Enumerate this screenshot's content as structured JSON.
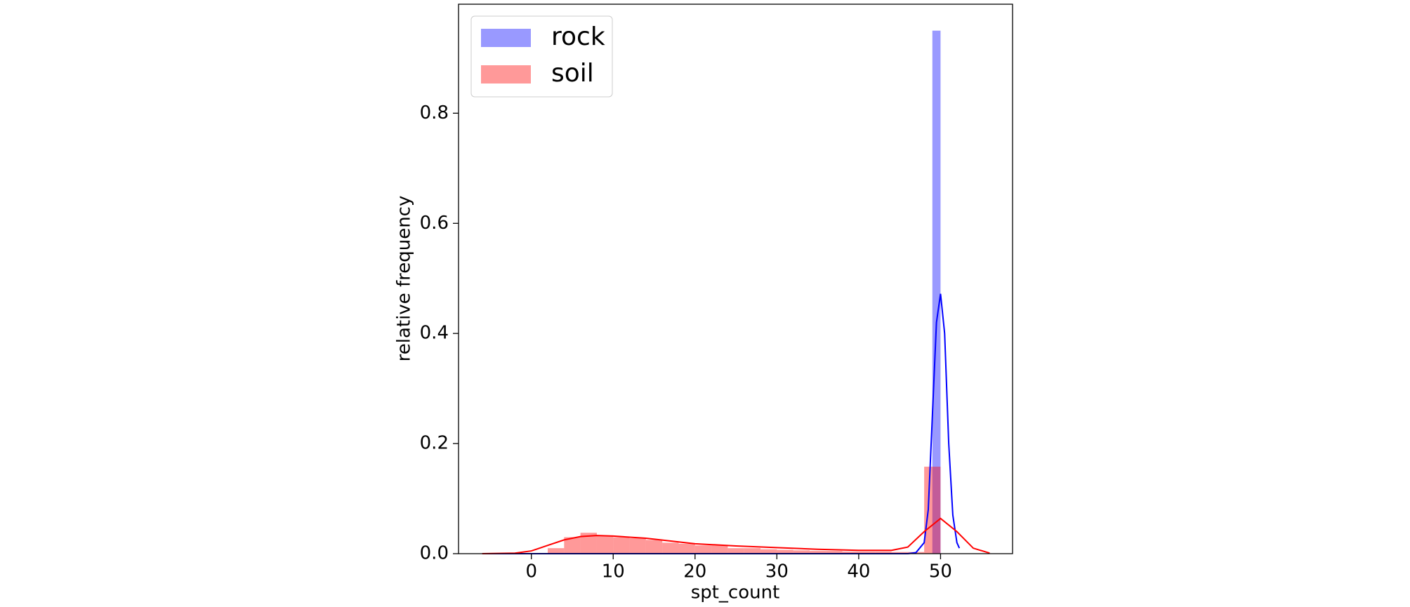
{
  "chart_data": {
    "type": "histogram",
    "x_label": "spt_count",
    "y_label": "relative frequency",
    "xlim": [
      -8.9,
      58.8
    ],
    "ylim": [
      0,
      0.998
    ],
    "xticks": [
      0,
      10,
      20,
      30,
      40,
      50
    ],
    "yticks": [
      {
        "value": 0,
        "label": "0.0"
      },
      0.2,
      0.4,
      0.6,
      0.8
    ],
    "legend": "upper left",
    "grid": false,
    "series": [
      {
        "name": "rock",
        "color": "#0000ff",
        "bins": [
          49,
          50
        ],
        "values": [
          0.95
        ],
        "kde": {
          "x": [
            -6,
            0,
            10,
            20,
            30,
            40,
            46,
            47,
            48,
            48.5,
            49,
            49.5,
            50,
            50.5,
            51,
            51.5,
            52,
            52.3
          ],
          "y": [
            0,
            0,
            0,
            0,
            0,
            0,
            0,
            0.002,
            0.02,
            0.08,
            0.25,
            0.42,
            0.472,
            0.4,
            0.2,
            0.07,
            0.02,
            0.01
          ]
        }
      },
      {
        "name": "soil",
        "color": "#ff0000",
        "bins": [
          2,
          4,
          6,
          8,
          10,
          12,
          14,
          16,
          18,
          20,
          22,
          24,
          26,
          28,
          30,
          32,
          34,
          36,
          38,
          40,
          42,
          44,
          46,
          48,
          50
        ],
        "values": [
          0.01,
          0.03,
          0.038,
          0.033,
          0.03,
          0.028,
          0.025,
          0.02,
          0.018,
          0.015,
          0.015,
          0.01,
          0.01,
          0.008,
          0.007,
          0.006,
          0.005,
          0.005,
          0.004,
          0.004,
          0.004,
          0.003,
          0.003,
          0.158
        ],
        "kde": {
          "x": [
            -6,
            -2,
            0,
            2,
            4,
            6,
            8,
            10,
            14,
            20,
            25,
            30,
            35,
            40,
            44,
            46,
            48,
            50,
            52,
            54,
            56
          ],
          "y": [
            0,
            0.001,
            0.005,
            0.015,
            0.025,
            0.031,
            0.033,
            0.032,
            0.028,
            0.018,
            0.014,
            0.011,
            0.008,
            0.006,
            0.006,
            0.012,
            0.04,
            0.064,
            0.04,
            0.01,
            0.001
          ]
        }
      }
    ]
  }
}
